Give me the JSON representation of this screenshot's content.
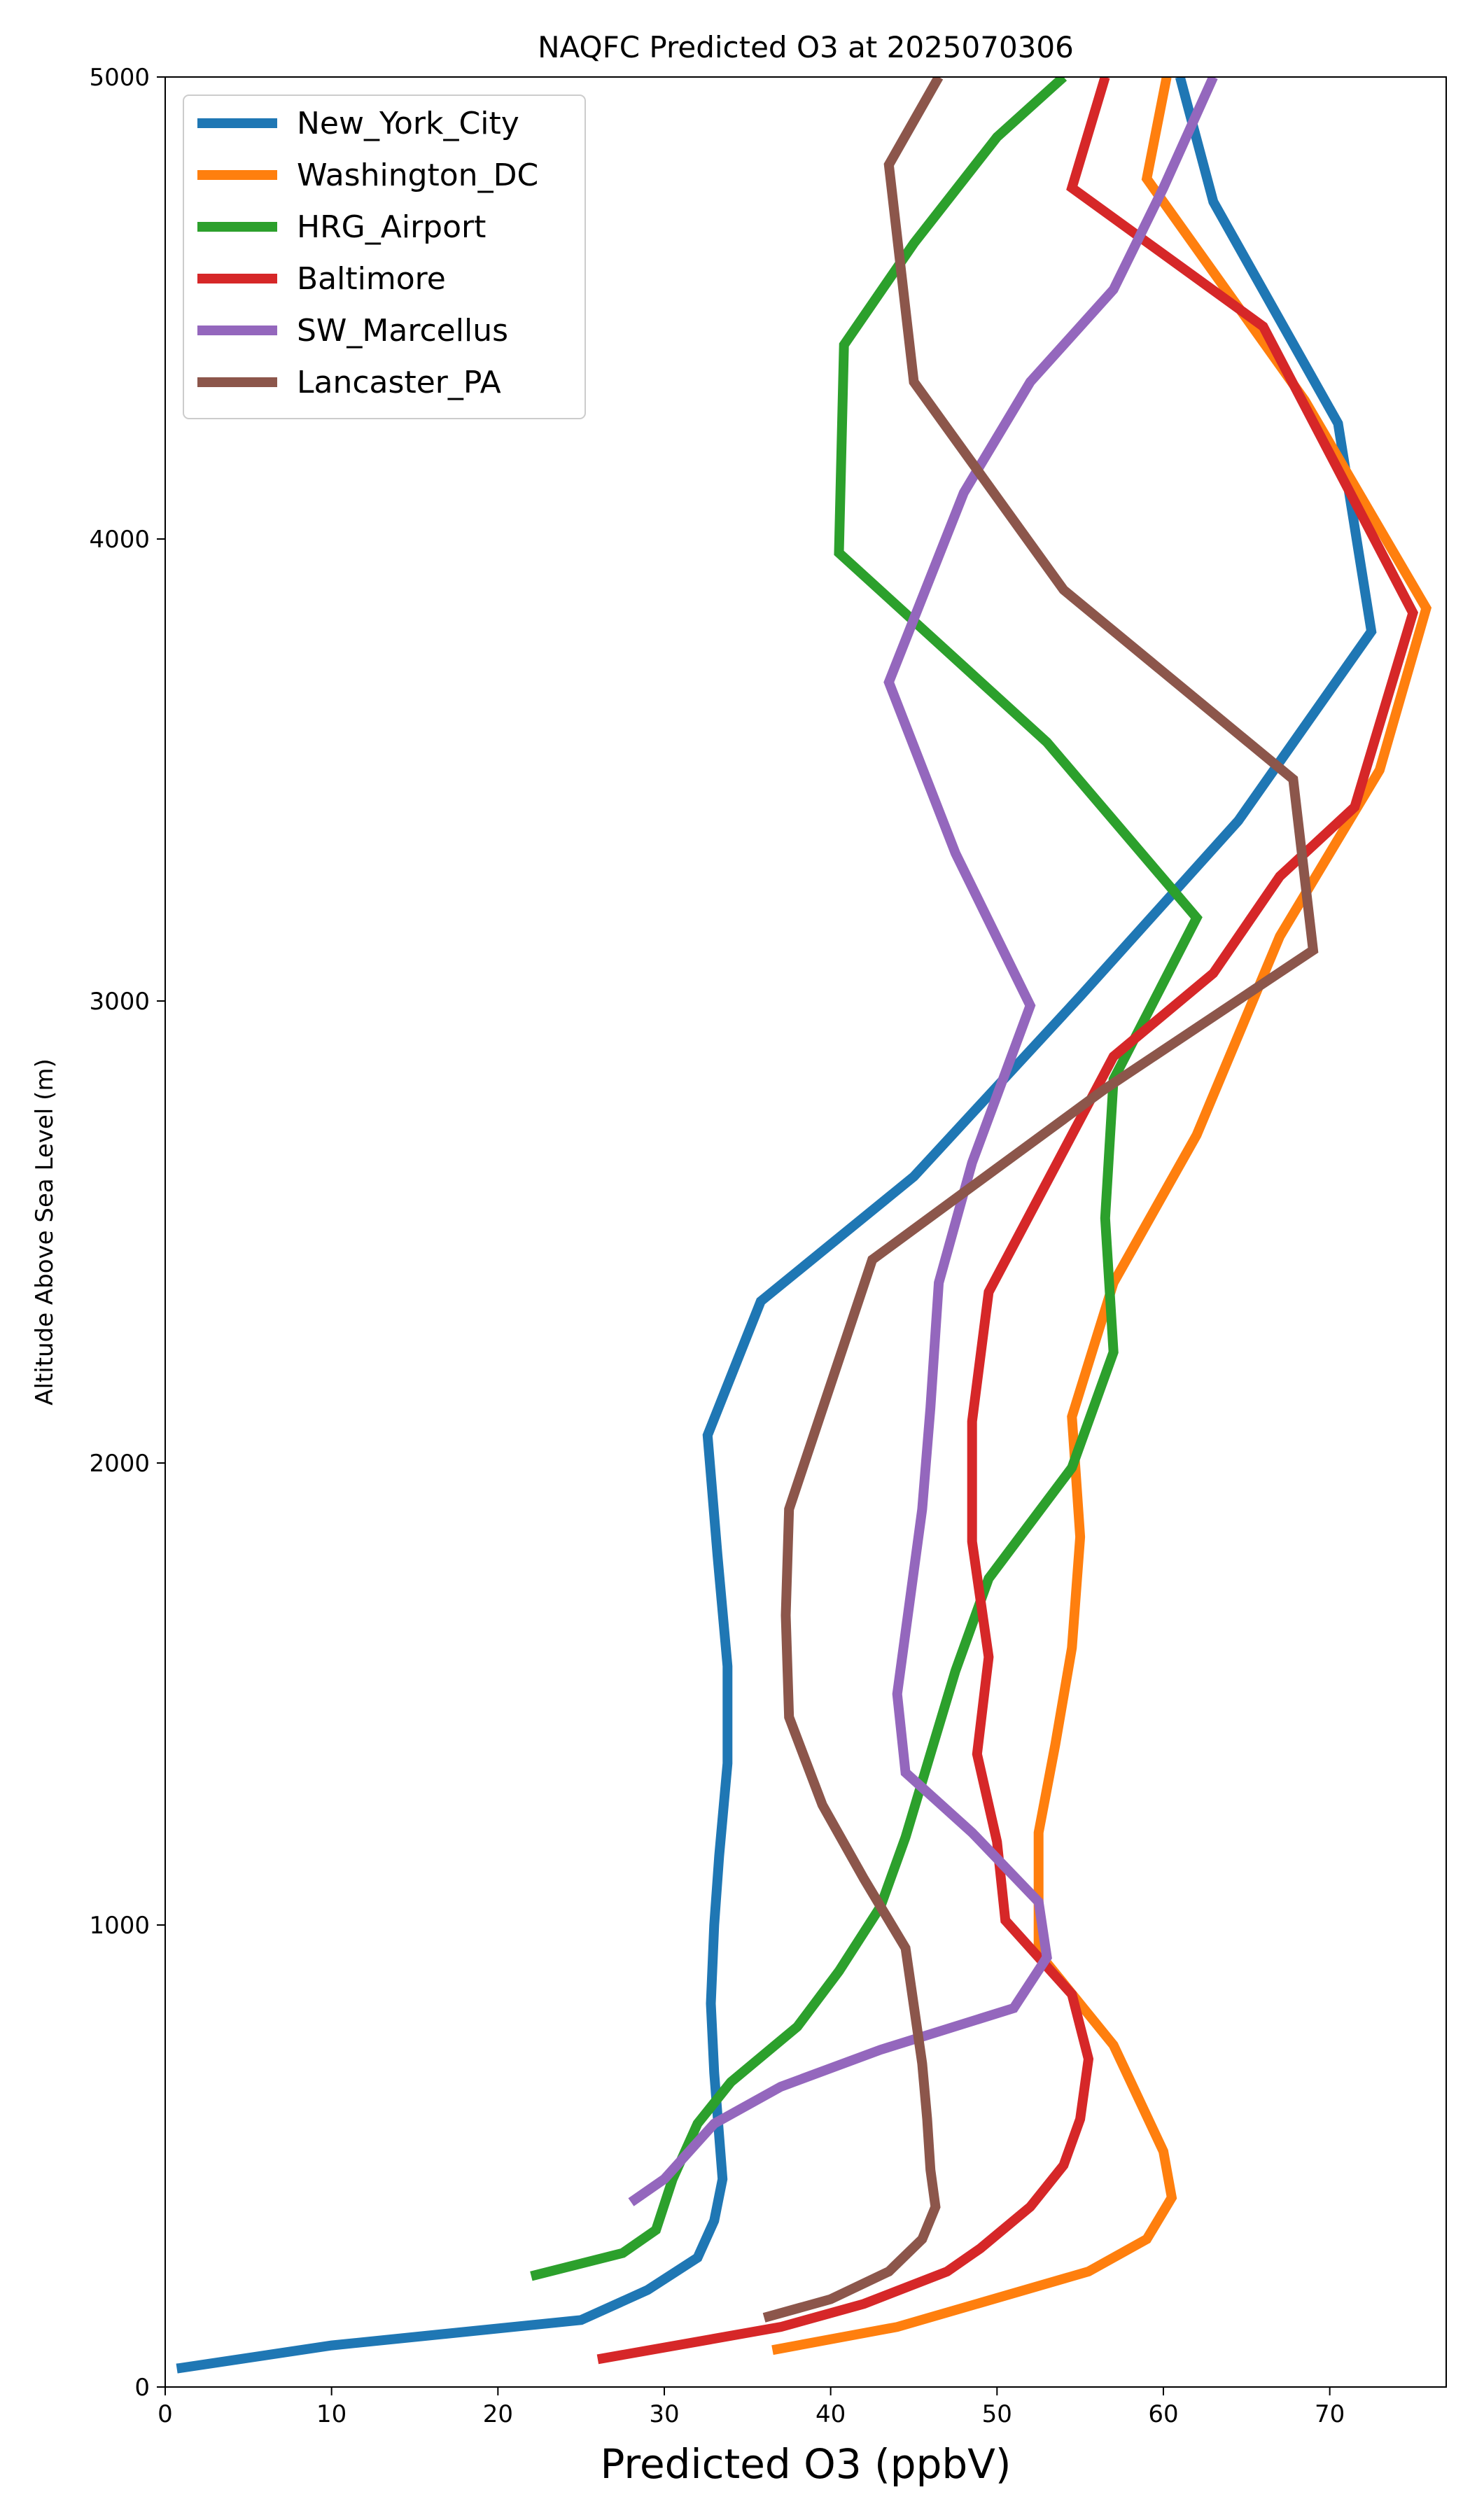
{
  "chart_data": {
    "type": "line",
    "title": "NAQFC Predicted O3 at 2025070306",
    "xlabel": "Predicted O3 (ppbV)",
    "ylabel": "Altitude Above Sea Level (m)",
    "xlim": [
      0,
      77
    ],
    "ylim": [
      0,
      5000
    ],
    "xticks": [
      0,
      10,
      20,
      30,
      40,
      50,
      60,
      70
    ],
    "yticks": [
      0,
      1000,
      2000,
      3000,
      4000,
      5000
    ],
    "grid": false,
    "legend_position": "top-left",
    "series": [
      {
        "name": "New_York_City",
        "color": "#1f77b4",
        "points": [
          [
            0.7,
            40
          ],
          [
            10,
            90
          ],
          [
            25,
            145
          ],
          [
            29,
            210
          ],
          [
            32,
            280
          ],
          [
            33,
            360
          ],
          [
            33.5,
            450
          ],
          [
            33,
            680
          ],
          [
            32.8,
            830
          ],
          [
            33,
            1000
          ],
          [
            33.3,
            1150
          ],
          [
            33.8,
            1350
          ],
          [
            33.8,
            1560
          ],
          [
            33.2,
            1800
          ],
          [
            32.6,
            2060
          ],
          [
            35.8,
            2350
          ],
          [
            45,
            2620
          ],
          [
            55,
            3010
          ],
          [
            64.5,
            3390
          ],
          [
            72.5,
            3800
          ],
          [
            70.5,
            4250
          ],
          [
            63,
            4730
          ],
          [
            61,
            5000
          ]
        ]
      },
      {
        "name": "Washington_DC",
        "color": "#ff7f0e",
        "points": [
          [
            36.5,
            80
          ],
          [
            44,
            130
          ],
          [
            55.5,
            250
          ],
          [
            59,
            320
          ],
          [
            60.5,
            410
          ],
          [
            60,
            510
          ],
          [
            57,
            740
          ],
          [
            52.5,
            940
          ],
          [
            52.5,
            1200
          ],
          [
            53.5,
            1390
          ],
          [
            54.5,
            1600
          ],
          [
            55,
            1840
          ],
          [
            54.5,
            2100
          ],
          [
            57,
            2390
          ],
          [
            62,
            2710
          ],
          [
            67,
            3140
          ],
          [
            73,
            3500
          ],
          [
            75.8,
            3850
          ],
          [
            68.5,
            4300
          ],
          [
            59,
            4780
          ],
          [
            60.2,
            5000
          ]
        ]
      },
      {
        "name": "HRG_Airport",
        "color": "#2ca02c",
        "points": [
          [
            22,
            240
          ],
          [
            27.5,
            290
          ],
          [
            29.5,
            340
          ],
          [
            30.5,
            450
          ],
          [
            32,
            570
          ],
          [
            34,
            660
          ],
          [
            38,
            780
          ],
          [
            40.5,
            900
          ],
          [
            43,
            1040
          ],
          [
            44.5,
            1190
          ],
          [
            46,
            1370
          ],
          [
            47.5,
            1550
          ],
          [
            49.5,
            1750
          ],
          [
            54.5,
            1990
          ],
          [
            57,
            2240
          ],
          [
            56.5,
            2530
          ],
          [
            57,
            2830
          ],
          [
            62,
            3180
          ],
          [
            53,
            3560
          ],
          [
            40.5,
            3970
          ],
          [
            40.8,
            4420
          ],
          [
            45,
            4640
          ],
          [
            50,
            4870
          ],
          [
            54,
            5000
          ]
        ]
      },
      {
        "name": "Baltimore",
        "color": "#d62728",
        "points": [
          [
            26,
            60
          ],
          [
            37,
            130
          ],
          [
            42,
            180
          ],
          [
            47,
            250
          ],
          [
            49,
            300
          ],
          [
            52,
            390
          ],
          [
            54,
            480
          ],
          [
            55,
            580
          ],
          [
            55.5,
            710
          ],
          [
            54.5,
            850
          ],
          [
            50.5,
            1010
          ],
          [
            50,
            1180
          ],
          [
            48.8,
            1370
          ],
          [
            49.5,
            1580
          ],
          [
            48.5,
            1830
          ],
          [
            48.5,
            2090
          ],
          [
            49.5,
            2370
          ],
          [
            57,
            2880
          ],
          [
            63,
            3060
          ],
          [
            67,
            3270
          ],
          [
            71.5,
            3420
          ],
          [
            75,
            3840
          ],
          [
            66,
            4460
          ],
          [
            54.5,
            4760
          ],
          [
            56.5,
            5000
          ]
        ]
      },
      {
        "name": "SW_Marcellus",
        "color": "#9467bd",
        "points": [
          [
            28,
            400
          ],
          [
            30,
            450
          ],
          [
            33,
            570
          ],
          [
            37,
            650
          ],
          [
            43,
            730
          ],
          [
            51,
            820
          ],
          [
            53,
            930
          ],
          [
            52.5,
            1050
          ],
          [
            48.5,
            1200
          ],
          [
            44.5,
            1330
          ],
          [
            44,
            1500
          ],
          [
            45.5,
            1900
          ],
          [
            46,
            2120
          ],
          [
            46.5,
            2390
          ],
          [
            48.5,
            2650
          ],
          [
            52,
            2990
          ],
          [
            47.5,
            3320
          ],
          [
            43.5,
            3690
          ],
          [
            48,
            4100
          ],
          [
            52,
            4340
          ],
          [
            57,
            4540
          ],
          [
            60,
            4760
          ],
          [
            63,
            5000
          ]
        ]
      },
      {
        "name": "Lancaster_PA",
        "color": "#8c564b",
        "points": [
          [
            36,
            150
          ],
          [
            40,
            190
          ],
          [
            43.5,
            250
          ],
          [
            45.5,
            320
          ],
          [
            46.3,
            390
          ],
          [
            46,
            470
          ],
          [
            45.8,
            580
          ],
          [
            45.5,
            700
          ],
          [
            44.5,
            950
          ],
          [
            42,
            1100
          ],
          [
            39.5,
            1260
          ],
          [
            37.5,
            1450
          ],
          [
            37.3,
            1670
          ],
          [
            37.5,
            1900
          ],
          [
            42.5,
            2440
          ],
          [
            56.5,
            2810
          ],
          [
            69,
            3110
          ],
          [
            67.8,
            3480
          ],
          [
            54,
            3890
          ],
          [
            45,
            4340
          ],
          [
            43.5,
            4810
          ],
          [
            46.5,
            5000
          ]
        ]
      }
    ]
  }
}
